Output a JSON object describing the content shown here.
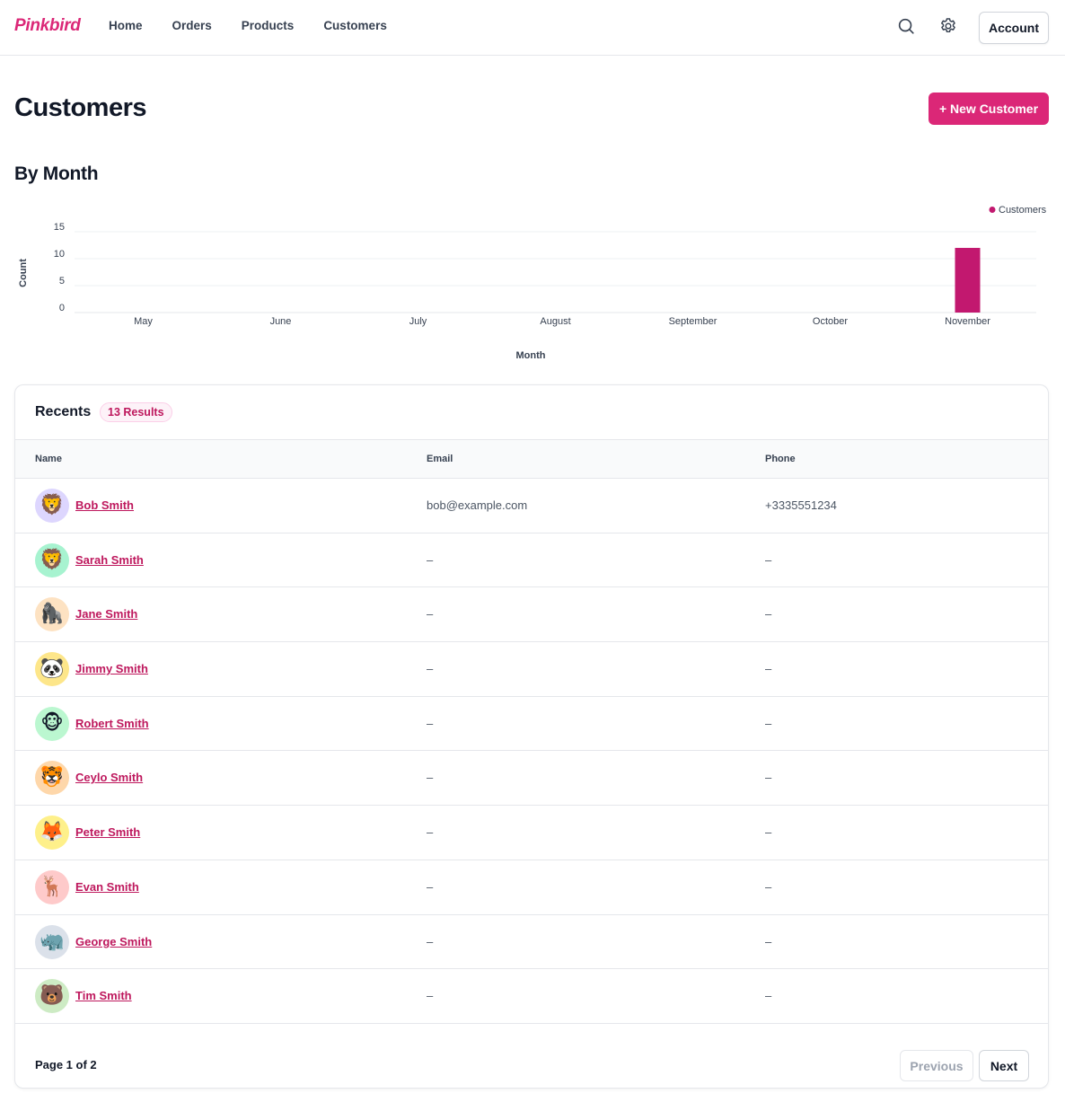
{
  "nav": {
    "brand": "Pinkbird",
    "links": [
      "Home",
      "Orders",
      "Products",
      "Customers"
    ],
    "search_icon": "search-icon",
    "settings_icon": "gear-icon",
    "account_label": "Account"
  },
  "header": {
    "title": "Customers",
    "new_button": "+ New Customer"
  },
  "section": {
    "by_month": "By Month"
  },
  "colors": {
    "brand": "#db2777",
    "bar": "#c2186f"
  },
  "chart_data": {
    "type": "bar",
    "categories": [
      "May",
      "June",
      "July",
      "August",
      "September",
      "October",
      "November"
    ],
    "series": [
      {
        "name": "Customers",
        "values": [
          0,
          0,
          0,
          0,
          0,
          0,
          12
        ]
      }
    ],
    "xlabel": "Month",
    "ylabel": "Count",
    "ylim": [
      0,
      15
    ],
    "yticks": [
      0,
      5,
      10,
      15
    ],
    "grid": true,
    "legend": "top-right"
  },
  "recents": {
    "title": "Recents",
    "badge": "13 Results",
    "columns": {
      "name": "Name",
      "email": "Email",
      "phone": "Phone"
    },
    "rows": [
      {
        "name": "Bob Smith",
        "email": "bob@example.com",
        "phone": "+3335551234",
        "avatar": "🦁",
        "avatar_bg": "#ddd6fe"
      },
      {
        "name": "Sarah Smith",
        "email": "–",
        "phone": "–",
        "avatar": "🦁",
        "avatar_bg": "#a7f3d0"
      },
      {
        "name": "Jane Smith",
        "email": "–",
        "phone": "–",
        "avatar": "🦍",
        "avatar_bg": "#fde2c2"
      },
      {
        "name": "Jimmy Smith",
        "email": "–",
        "phone": "–",
        "avatar": "🐼",
        "avatar_bg": "#fde68a"
      },
      {
        "name": "Robert Smith",
        "email": "–",
        "phone": "–",
        "avatar": "🐵",
        "avatar_bg": "#bbf7d0"
      },
      {
        "name": "Ceylo Smith",
        "email": "–",
        "phone": "–",
        "avatar": "🐯",
        "avatar_bg": "#fed7aa"
      },
      {
        "name": "Peter Smith",
        "email": "–",
        "phone": "–",
        "avatar": "🦊",
        "avatar_bg": "#fef08a"
      },
      {
        "name": "Evan Smith",
        "email": "–",
        "phone": "–",
        "avatar": "🦌",
        "avatar_bg": "#fecaca"
      },
      {
        "name": "George Smith",
        "email": "–",
        "phone": "–",
        "avatar": "🦏",
        "avatar_bg": "#dbe1ea"
      },
      {
        "name": "Tim Smith",
        "email": "–",
        "phone": "–",
        "avatar": "🐻",
        "avatar_bg": "#cdebc4"
      }
    ]
  },
  "pagination": {
    "page_info": "Page 1 of 2",
    "previous": "Previous",
    "next": "Next"
  }
}
